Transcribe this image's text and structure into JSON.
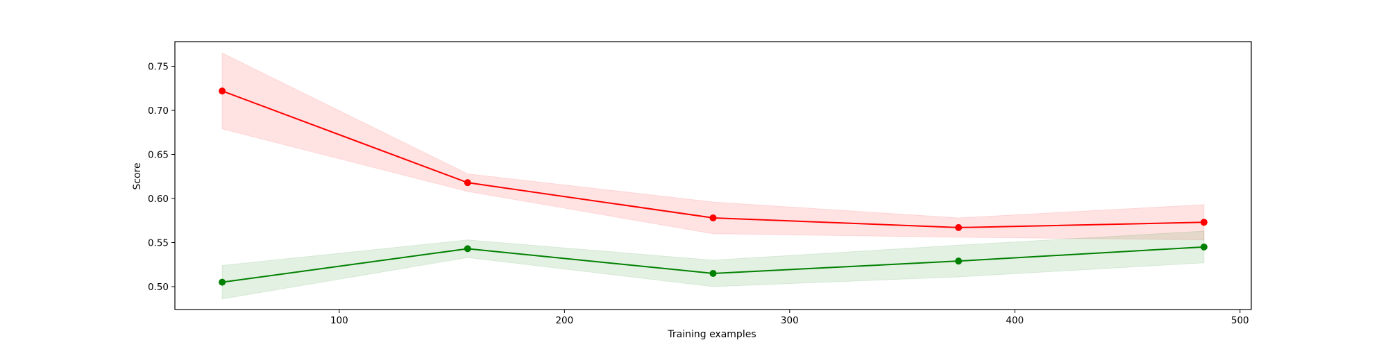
{
  "chart_data": {
    "type": "line",
    "title": "",
    "xlabel": "Training examples",
    "ylabel": "Score",
    "xlim": [
      27,
      505
    ],
    "ylim": [
      0.474,
      0.778
    ],
    "x_ticks": [
      100,
      200,
      300,
      400,
      500
    ],
    "x_tick_labels": [
      "100",
      "200",
      "300",
      "400",
      "500"
    ],
    "y_ticks": [
      0.5,
      0.55,
      0.6,
      0.65,
      0.7,
      0.75
    ],
    "y_tick_labels": [
      "0.50",
      "0.55",
      "0.60",
      "0.65",
      "0.70",
      "0.75"
    ],
    "grid": false,
    "legend": "none",
    "x": [
      48,
      157,
      266,
      375,
      484
    ],
    "series": [
      {
        "key": "red",
        "color": "#ff0000",
        "band_color": "#ff0000",
        "values": [
          0.722,
          0.618,
          0.578,
          0.567,
          0.573
        ],
        "band_upper": [
          0.765,
          0.628,
          0.596,
          0.578,
          0.593
        ],
        "band_lower": [
          0.679,
          0.608,
          0.56,
          0.556,
          0.553
        ]
      },
      {
        "key": "green",
        "color": "#008000",
        "band_color": "#008000",
        "values": [
          0.505,
          0.543,
          0.515,
          0.529,
          0.545
        ],
        "band_upper": [
          0.524,
          0.553,
          0.53,
          0.547,
          0.563
        ],
        "band_lower": [
          0.486,
          0.533,
          0.5,
          0.511,
          0.527
        ]
      }
    ]
  }
}
